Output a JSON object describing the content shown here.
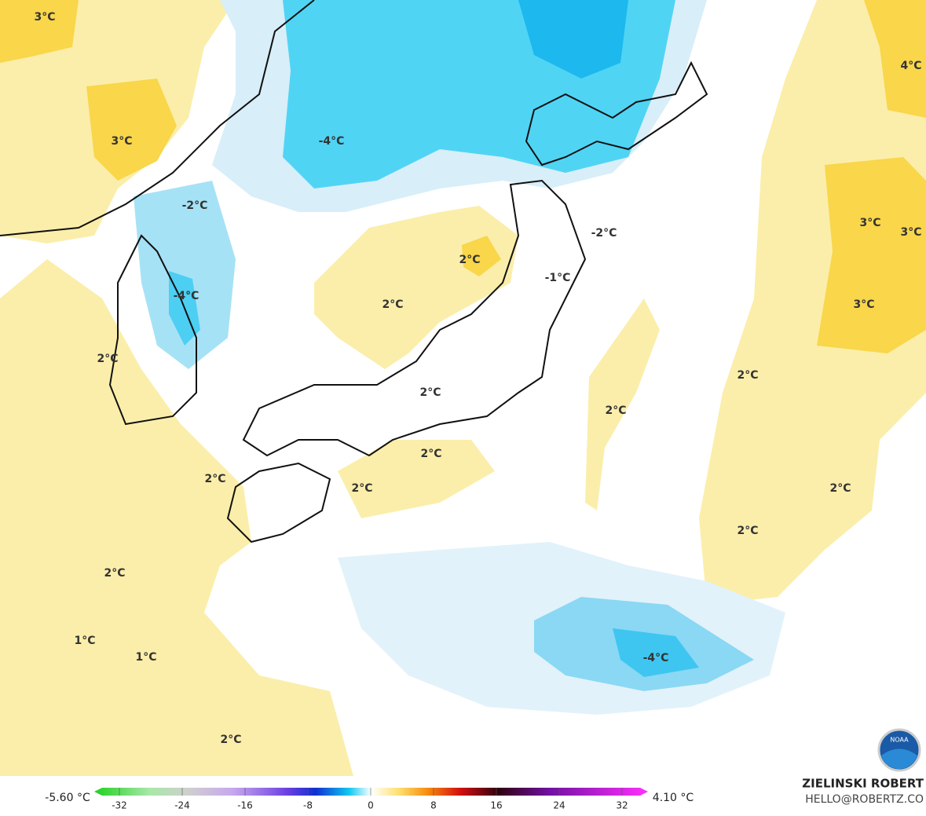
{
  "map": {
    "contour_labels": [
      "3°C",
      "3°C",
      "-4°C",
      "-2°C",
      "-4°C",
      "2°C",
      "2°C",
      "2°C",
      "-1°C",
      "-2°C",
      "4°C",
      "3°C",
      "3°C",
      "3°C",
      "2°C",
      "2°C",
      "2°C",
      "2°C",
      "2°C",
      "2°C",
      "2°C",
      "2°C",
      "2°C",
      "1°C",
      "1°C",
      "2°C",
      "-4°C"
    ]
  },
  "colorbar": {
    "min_label": "-5.60 °C",
    "max_label": "4.10 °C",
    "ticks": [
      -32,
      -24,
      -16,
      -8,
      0,
      8,
      16,
      24,
      32
    ]
  },
  "credit": {
    "name": "ZIELINSKI ROBERT",
    "contact": "HELLO@ROBERTZ.CO"
  },
  "logo": {
    "text": "NOAA"
  }
}
